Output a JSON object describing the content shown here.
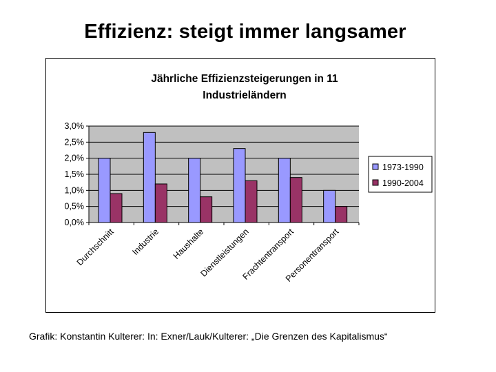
{
  "page": {
    "title": "Effizienz: steigt immer langsamer",
    "source": "Grafik: Konstantin Kulterer: In: Exner/Lauk/Kulterer: „Die Grenzen des Kapitalismus“"
  },
  "colors": {
    "series_1990": "#9999ff",
    "series_2004": "#993366",
    "plot_area": "#c0c0c0",
    "gridline": "#000000"
  },
  "chart_data": {
    "type": "bar",
    "title": "Jährliche Effizienzsteigerungen in 11 Industrieländern",
    "title_lines": [
      "Jährliche Effizienzsteigerungen in 11",
      "Industrieländern"
    ],
    "categories": [
      "Durchschnitt",
      "Industrie",
      "Haushalte",
      "Dienstleistungen",
      "Frachtentransport",
      "Personentransport"
    ],
    "series": [
      {
        "name": "1973-1990",
        "values": [
          2.0,
          2.8,
          2.0,
          2.3,
          2.0,
          1.0
        ]
      },
      {
        "name": "1990-2004",
        "values": [
          0.9,
          1.2,
          0.8,
          1.3,
          1.4,
          0.5
        ]
      }
    ],
    "ylim": [
      0,
      3.0
    ],
    "yticks": [
      0.0,
      0.5,
      1.0,
      1.5,
      2.0,
      2.5,
      3.0
    ],
    "ytick_labels": [
      "0,0%",
      "0,5%",
      "1,0%",
      "1,5%",
      "2,0%",
      "2,5%",
      "3,0%"
    ],
    "xlabel": "",
    "ylabel": "",
    "grid": true,
    "legend": "right"
  }
}
